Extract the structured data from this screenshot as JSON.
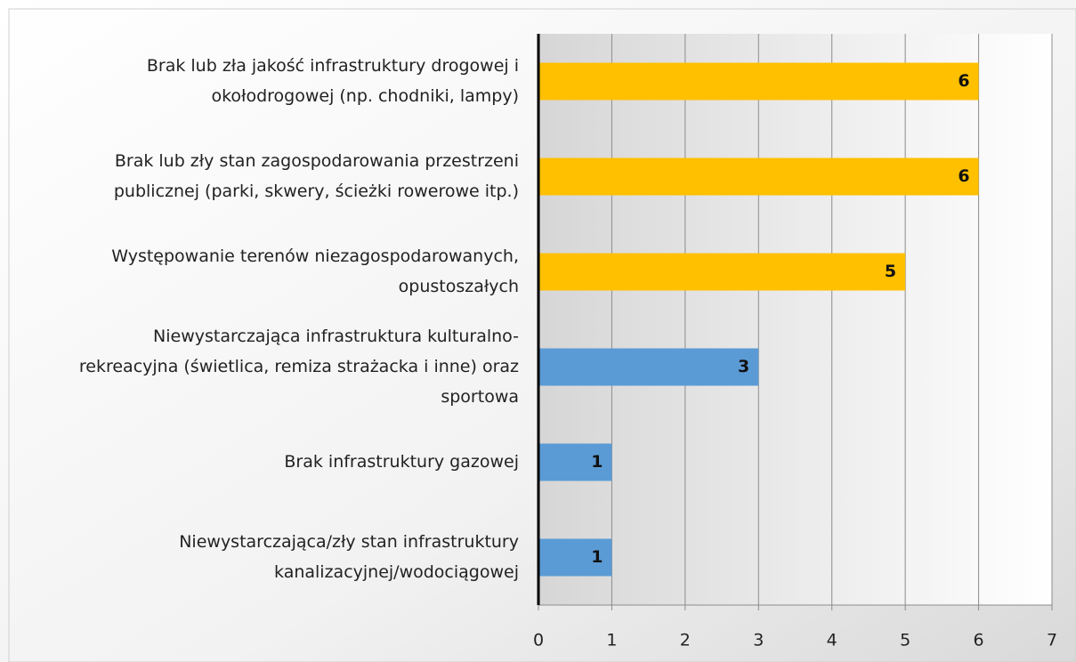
{
  "chart_data": {
    "type": "bar",
    "orientation": "horizontal",
    "categories": [
      [
        "Brak lub zła jakość infrastruktury drogowej i",
        "okołodrogowej (np. chodniki, lampy)"
      ],
      [
        "Brak lub zły stan zagospodarowania przestrzeni",
        "publicznej (parki, skwery, ścieżki rowerowe itp.)"
      ],
      [
        "Występowanie terenów niezagospodarowanych,",
        "opustoszałych"
      ],
      [
        "Niewystarczająca infrastruktura kulturalno-",
        "rekreacyjna (świetlica, remiza strażacka i inne) oraz",
        "sportowa"
      ],
      [
        "Brak infrastruktury gazowej"
      ],
      [
        "Niewystarczająca/zły stan infrastruktury",
        "kanalizacyjnej/wodociągowej"
      ]
    ],
    "values": [
      6,
      6,
      5,
      3,
      1,
      1
    ],
    "colors": [
      "#ffc000",
      "#ffc000",
      "#ffc000",
      "#5b9bd5",
      "#5b9bd5",
      "#5b9bd5"
    ],
    "xlim": [
      0,
      7
    ],
    "xticks": [
      0,
      1,
      2,
      3,
      4,
      5,
      6,
      7
    ],
    "grid": true
  }
}
